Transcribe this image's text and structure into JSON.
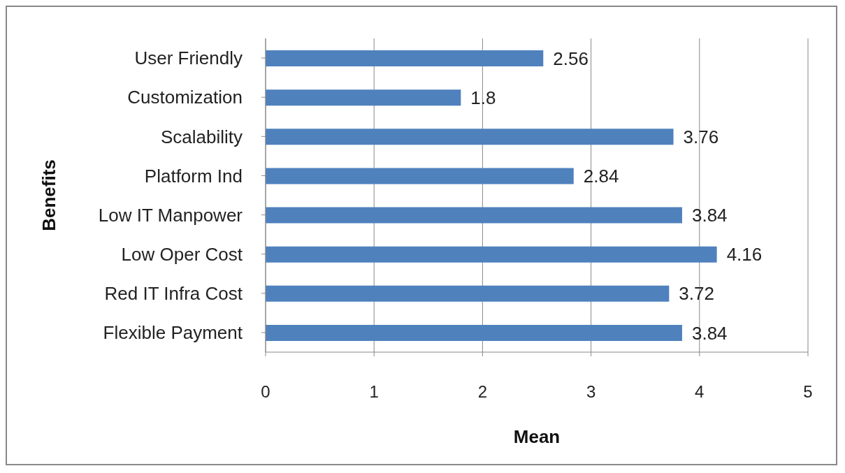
{
  "chart_data": {
    "type": "bar",
    "orientation": "horizontal",
    "xlabel": "Mean",
    "ylabel": "Benefits",
    "categories": [
      "User Friendly",
      "Customization",
      "Scalability",
      "Platform Ind",
      "Low IT Manpower",
      "Low Oper Cost",
      "Red IT Infra Cost",
      "Flexible Payment"
    ],
    "values": [
      2.56,
      1.8,
      3.76,
      2.84,
      3.84,
      4.16,
      3.72,
      3.84
    ],
    "color": "#4f81bd",
    "xlim": [
      0,
      5
    ],
    "xticks": [
      0,
      1,
      2,
      3,
      4,
      5
    ],
    "grid": "x",
    "data_labels": true
  }
}
